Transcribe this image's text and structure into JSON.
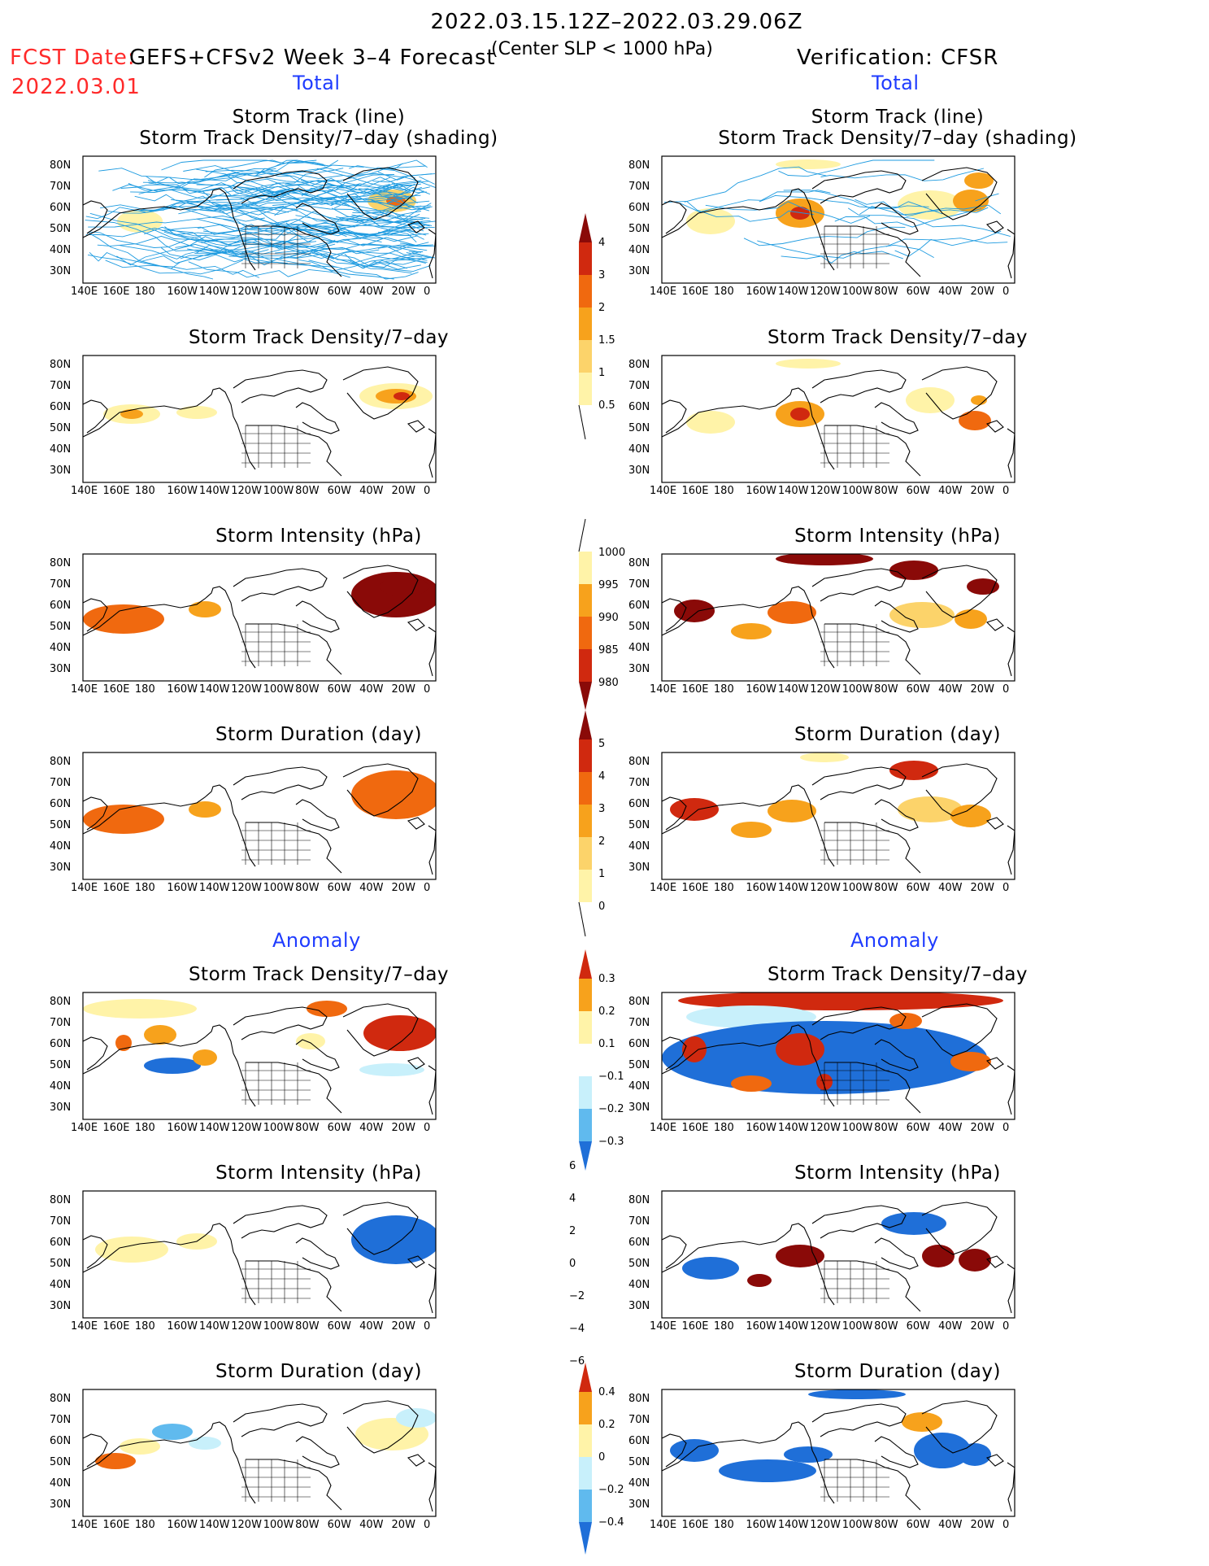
{
  "header": {
    "title": "2022.03.15.12Z–2022.03.29.06Z",
    "fcst_label": "FCST Date:",
    "fcst_date": "2022.03.01",
    "model": "GEFS+CFSv2 Week 3–4 Forecast",
    "criterion": "(Center SLP < 1000 hPa)",
    "verification": "Verification: CFSR"
  },
  "sections": {
    "total": "Total",
    "anomaly": "Anomaly"
  },
  "panel_titles": {
    "track_line": "Storm Track (line)",
    "track_density_shading": "Storm Track Density/7–day (shading)",
    "track_density": "Storm Track Density/7–day",
    "intensity": "Storm Intensity (hPa)",
    "duration": "Storm Duration (day)"
  },
  "axes": {
    "lat_labels": [
      "80N",
      "70N",
      "60N",
      "50N",
      "40N",
      "30N"
    ],
    "lon_labels": [
      "140E",
      "160E",
      "180",
      "160W",
      "140W",
      "120W",
      "100W",
      "80W",
      "60W",
      "40W",
      "20W",
      "0"
    ]
  },
  "colorbars": {
    "density_total": [
      "0.5",
      "1",
      "1.5",
      "2",
      "3",
      "4"
    ],
    "intensity_total": [
      "1000",
      "995",
      "990",
      "985",
      "980"
    ],
    "duration_total": [
      "0",
      "1",
      "2",
      "3",
      "4",
      "5"
    ],
    "density_anom": [
      "0.3",
      "0.2",
      "0.1",
      "−0.1",
      "−0.2",
      "−0.3"
    ],
    "intensity_anom": [
      "6",
      "4",
      "2",
      "0",
      "−2",
      "−4",
      "−6"
    ],
    "duration_anom": [
      "0.4",
      "0.2",
      "0",
      "−0.2",
      "−0.4"
    ]
  },
  "colors": {
    "track_line": "#1e9be0",
    "dens1": "#fff3a8",
    "dens2": "#fcd36a",
    "dens3": "#f7a21c",
    "dens4": "#f0690f",
    "dens5": "#d0290f",
    "dens6": "#8a0a08",
    "anom_neg1": "#c8f0fb",
    "anom_neg2": "#60baee",
    "anom_neg3": "#1f6fd8",
    "title_blue": "#1f3cff",
    "label_red": "#ff2a2a"
  }
}
